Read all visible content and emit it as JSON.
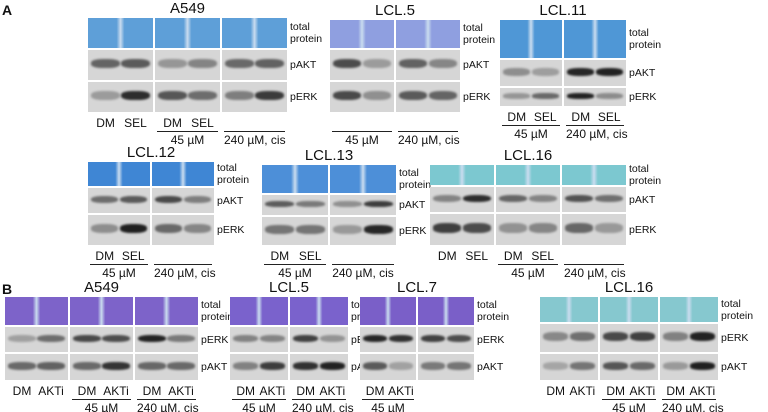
{
  "panels": [
    {
      "label": "A",
      "blots": [
        {
          "title": "A549",
          "rows": [
            "total protein",
            "pAKT",
            "pERK"
          ],
          "segments": [
            {
              "lanes": [
                "DM",
                "SEL"
              ]
            },
            {
              "lanes": [
                "DM",
                "SEL"
              ],
              "group": "45 µM"
            },
            {
              "group": "240 µM, cis"
            }
          ]
        },
        {
          "title": "LCL.5",
          "rows": [
            "total protein",
            "pAKT",
            "pERK"
          ],
          "segments": [
            {
              "group": "45 µM"
            },
            {
              "group": "240 µM, cis"
            }
          ]
        },
        {
          "title": "LCL.11",
          "rows": [
            "total protein",
            "pAKT",
            "pERK"
          ],
          "segments": [
            {
              "lanes": [
                "DM",
                "SEL"
              ],
              "group": "45 µM"
            },
            {
              "lanes": [
                "DM",
                "SEL"
              ],
              "group": "240 µM, cis"
            }
          ]
        },
        {
          "title": "LCL.12",
          "rows": [
            "total protein",
            "pAKT",
            "pERK"
          ],
          "segments": [
            {
              "lanes": [
                "DM",
                "SEL"
              ],
              "group": "45 µM"
            },
            {
              "group": "240 µM, cis"
            }
          ]
        },
        {
          "title": "LCL.13",
          "rows": [
            "total protein",
            "pAKT",
            "pERK"
          ],
          "segments": [
            {
              "lanes": [
                "DM",
                "SEL"
              ],
              "group": "45 µM"
            },
            {
              "group": "240 µM, cis"
            }
          ]
        },
        {
          "title": "LCL.16",
          "rows": [
            "total protein",
            "pAKT",
            "pERK"
          ],
          "segments": [
            {
              "lanes": [
                "DM",
                "SEL"
              ]
            },
            {
              "lanes": [
                "DM",
                "SEL"
              ],
              "group": "45 µM"
            },
            {
              "group": "240 µM, cis"
            }
          ]
        }
      ]
    },
    {
      "label": "B",
      "blots": [
        {
          "title": "A549",
          "rows": [
            "total protein",
            "pERK",
            "pAKT"
          ],
          "segments": [
            {
              "lanes": [
                "DM",
                "AKTi"
              ]
            },
            {
              "lanes": [
                "DM",
                "AKTi"
              ],
              "group": "45 µM"
            },
            {
              "lanes": [
                "DM",
                "AKTi"
              ],
              "group": "240 µM, cis"
            }
          ]
        },
        {
          "title": "LCL.5",
          "rows": [
            "total protein",
            "pERK",
            "pAKT"
          ],
          "segments": [
            {
              "lanes": [
                "DM",
                "AKTi"
              ],
              "group": "45 µM"
            },
            {
              "lanes": [
                "DM",
                "AKTi"
              ],
              "group": "240 µM, cis"
            }
          ]
        },
        {
          "title": "LCL.7",
          "rows": [
            "total protein",
            "pERK",
            "pAKT"
          ],
          "segments": [
            {
              "lanes": [
                "DM",
                "AKTi"
              ],
              "group": "45 µM"
            },
            {}
          ]
        },
        {
          "title": "LCL.16",
          "rows": [
            "total protein",
            "pERK",
            "pAKT"
          ],
          "segments": [
            {
              "lanes": [
                "DM",
                "AKTi"
              ]
            },
            {
              "lanes": [
                "DM",
                "AKTi"
              ],
              "group": "45 µM"
            },
            {
              "lanes": [
                "DM",
                "AKTi"
              ],
              "group": "240 µM, cis"
            }
          ]
        }
      ]
    }
  ]
}
